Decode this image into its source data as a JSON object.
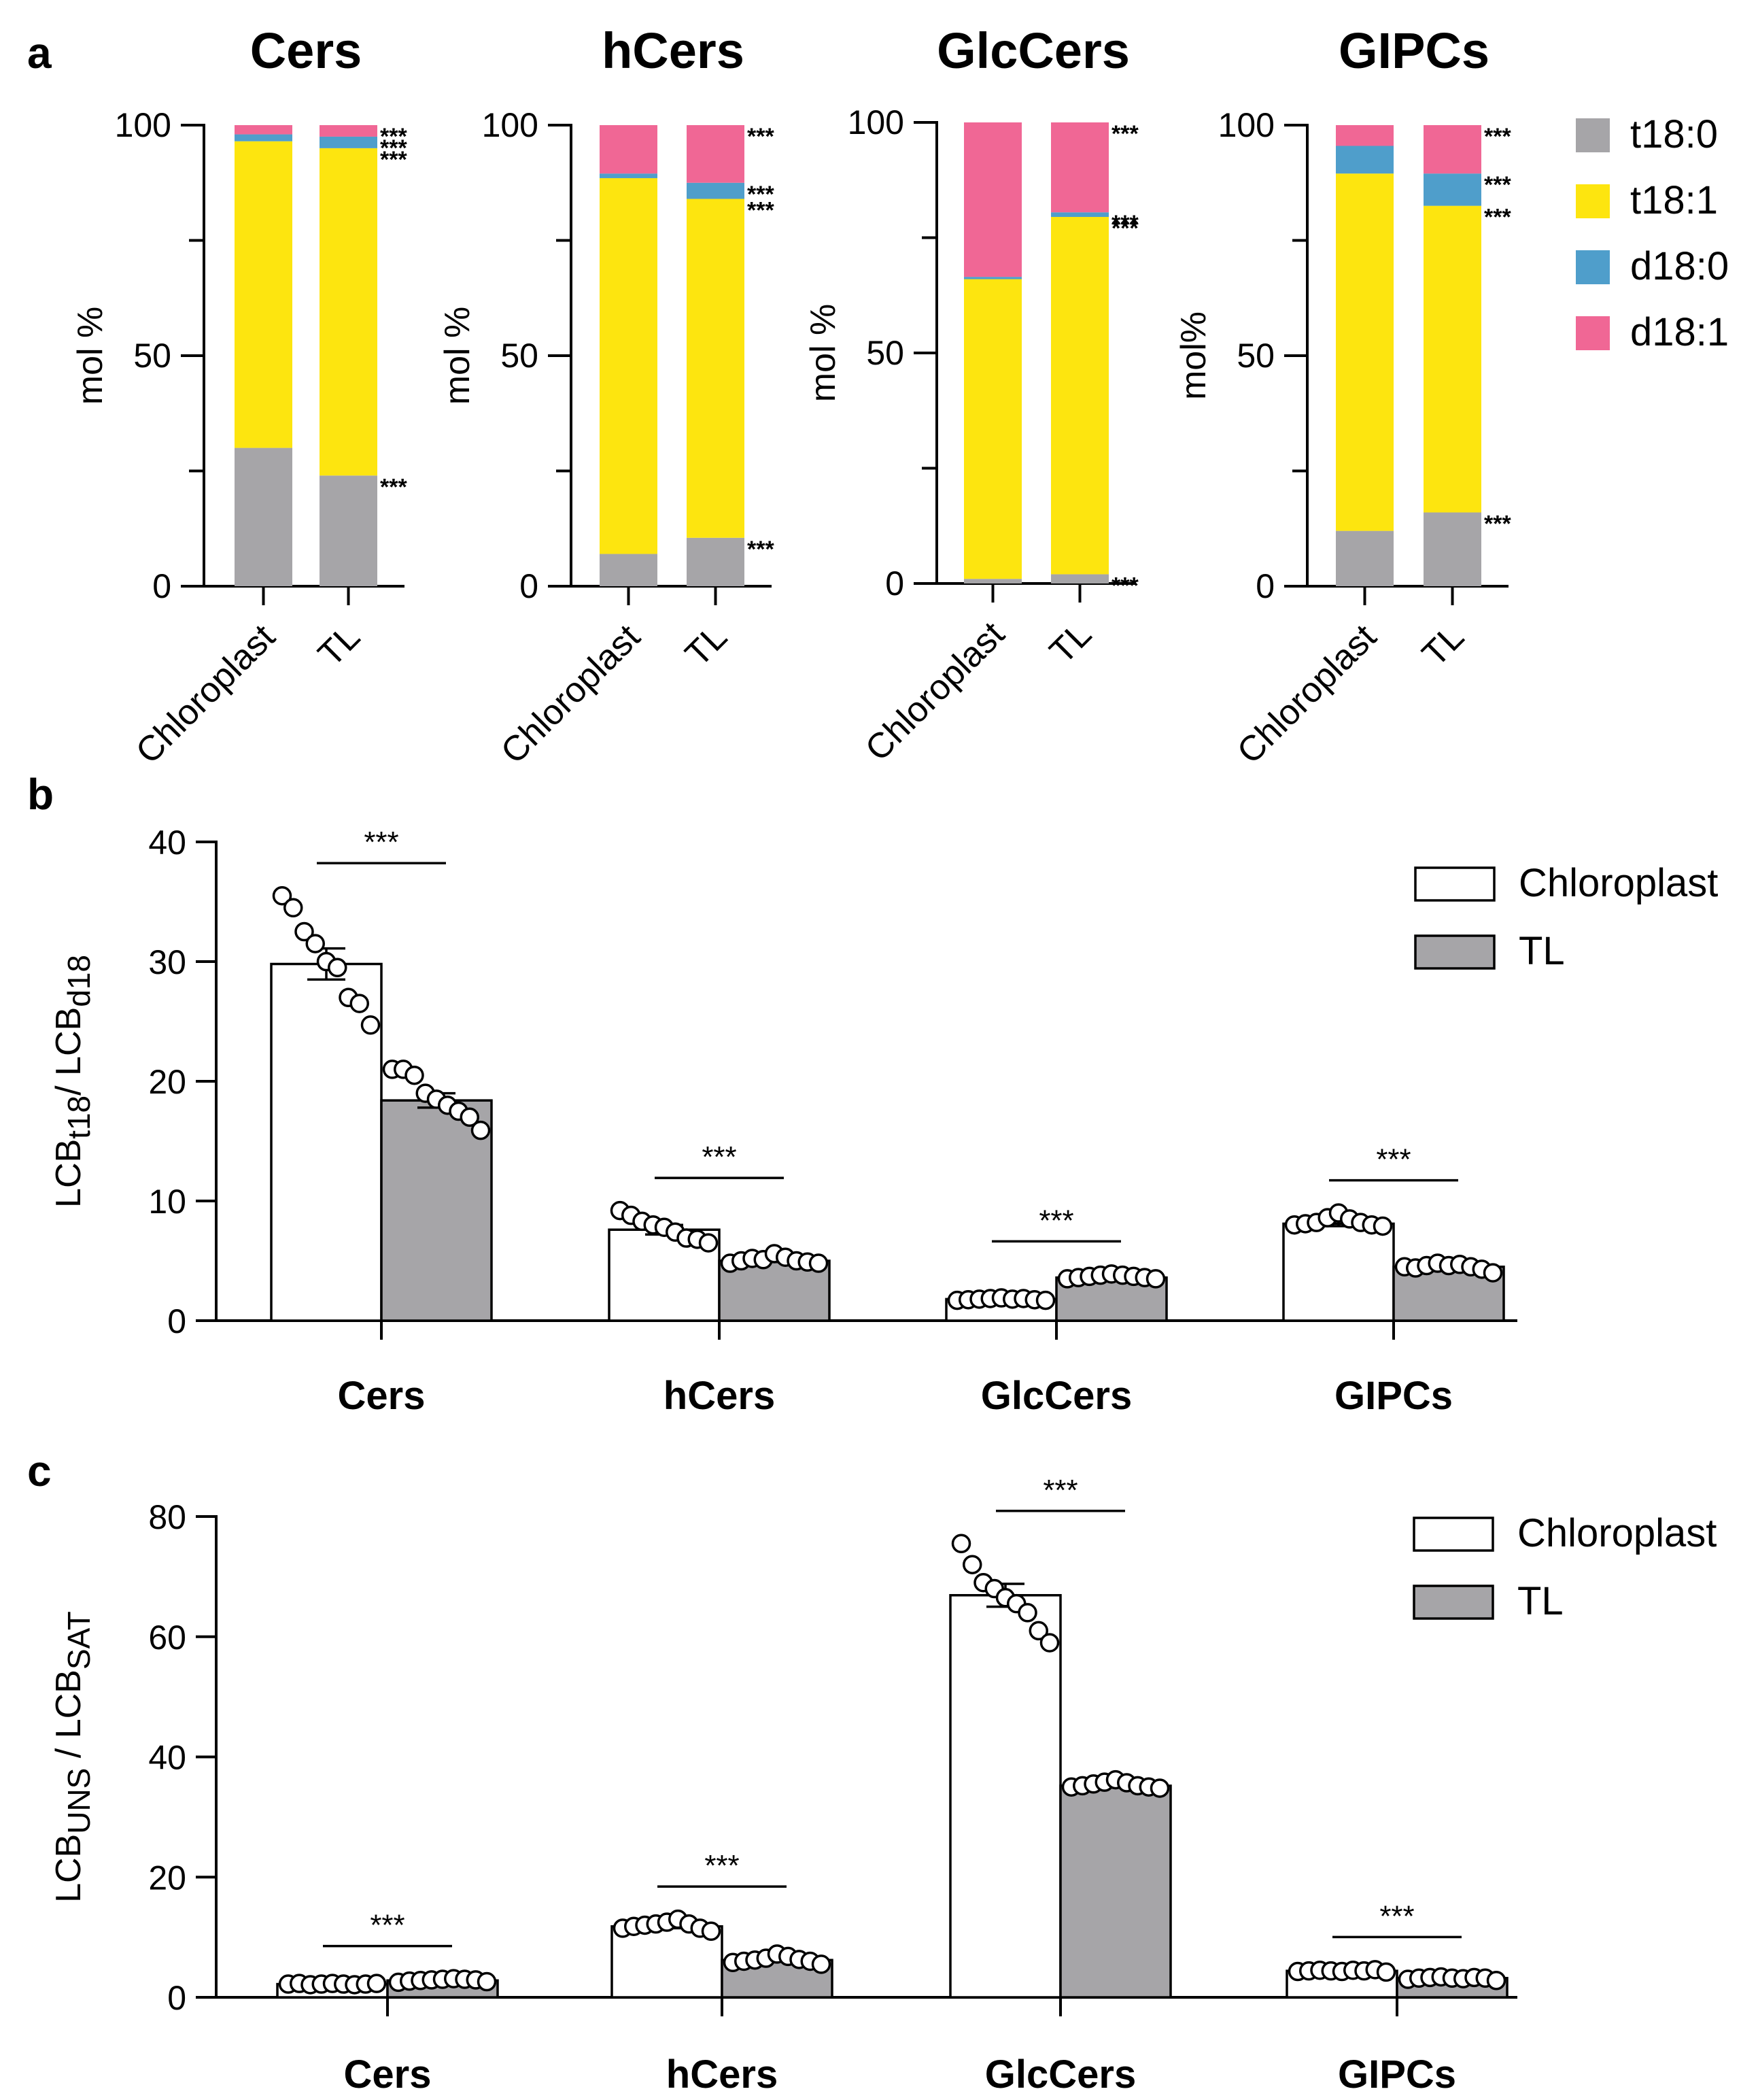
{
  "panel_labels": {
    "a": "a",
    "b": "b",
    "c": "c"
  },
  "colors": {
    "t18_0": "#a6a5a8",
    "t18_1": "#fde50f",
    "d18_0": "#4f9ecb",
    "d18_1": "#f06795",
    "tl_bar": "#a6a5a8",
    "chloroplast_bar": "#ffffff"
  },
  "chart_data": [
    {
      "id": "a",
      "type": "bar",
      "stacked": true,
      "legend": {
        "position": "right",
        "entries": [
          {
            "label": "t18:0",
            "key": "t18_0"
          },
          {
            "label": "t18:1",
            "key": "t18_1"
          },
          {
            "label": "d18:0",
            "key": "d18_0"
          },
          {
            "label": "d18:1",
            "key": "d18_1"
          }
        ]
      },
      "categories": [
        "Chloroplast",
        "TL"
      ],
      "ylim": [
        0,
        100
      ],
      "yticks": [
        "0",
        "50",
        "100"
      ],
      "significance": "***",
      "subplots": [
        {
          "title": "Cers",
          "ylabel": "mol %",
          "series": {
            "t18_0": [
              30,
              24
            ],
            "t18_1": [
              66.5,
              71
            ],
            "d18_0": [
              1.5,
              2.5
            ],
            "d18_1": [
              2,
              2.5
            ]
          },
          "stars": [
            "t18_1",
            "d18_0",
            "d18_1",
            "t18_0"
          ]
        },
        {
          "title": "hCers",
          "ylabel": "mol %",
          "series": {
            "t18_0": [
              7,
              10.5
            ],
            "t18_1": [
              81.5,
              73.5
            ],
            "d18_0": [
              1,
              3.5
            ],
            "d18_1": [
              10.5,
              12.5
            ]
          },
          "stars": [
            "d18_1",
            "d18_0",
            "t18_1",
            "t18_0"
          ]
        },
        {
          "title": "GlcCers",
          "ylabel": "mol %",
          "series": {
            "t18_0": [
              1,
              2
            ],
            "t18_1": [
              65,
              77.5
            ],
            "d18_0": [
              0.5,
              1
            ],
            "d18_1": [
              33.5,
              19.5
            ]
          },
          "stars": [
            "d18_1",
            "d18_0",
            "t18_1",
            "t18_0"
          ]
        },
        {
          "title": "GIPCs",
          "ylabel": "mol%",
          "series": {
            "t18_0": [
              12,
              16
            ],
            "t18_1": [
              77.5,
              66.5
            ],
            "d18_0": [
              6,
              7
            ],
            "d18_1": [
              4.5,
              10.5
            ]
          },
          "stars": [
            "d18_1",
            "d18_0",
            "t18_1",
            "t18_0"
          ]
        }
      ]
    },
    {
      "id": "b",
      "type": "bar",
      "ylabel": {
        "main": "LCB",
        "sub1": "t18",
        "mid": "/ LCB",
        "sub2": "d18"
      },
      "ylim": [
        0,
        40
      ],
      "yticks": [
        "0",
        "10",
        "20",
        "30",
        "40"
      ],
      "categories": [
        "Cers",
        "hCers",
        "GlcCers",
        "GIPCs"
      ],
      "legend": {
        "position": "top-right",
        "entries": [
          "Chloroplast",
          "TL"
        ]
      },
      "significance": "***",
      "series": [
        {
          "name": "Chloroplast",
          "values": [
            29.8,
            7.6,
            1.8,
            8.1
          ],
          "sem": [
            1.3,
            0.4,
            0.1,
            0.2
          ],
          "points": [
            [
              35.5,
              34.5,
              32.5,
              31.5,
              30,
              29.5,
              27,
              26.5,
              24.7
            ],
            [
              9.2,
              8.8,
              8.3,
              8,
              7.8,
              7.4,
              6.9,
              6.8,
              6.5
            ],
            [
              1.7,
              1.75,
              1.8,
              1.85,
              1.9,
              1.8,
              1.85,
              1.75,
              1.7
            ],
            [
              8,
              8.1,
              8.2,
              8.6,
              9,
              8.5,
              8.2,
              8,
              7.9
            ]
          ]
        },
        {
          "name": "TL",
          "values": [
            18.4,
            5.0,
            3.6,
            4.5
          ],
          "sem": [
            0.6,
            0.1,
            0.1,
            0.1
          ],
          "points": [
            [
              21,
              21,
              20.5,
              19,
              18.5,
              18,
              17.5,
              17,
              15.9
            ],
            [
              4.8,
              5,
              5.2,
              5.1,
              5.6,
              5.3,
              5,
              4.9,
              4.8
            ],
            [
              3.5,
              3.6,
              3.7,
              3.8,
              3.9,
              3.8,
              3.7,
              3.6,
              3.5
            ],
            [
              4.5,
              4.4,
              4.6,
              4.8,
              4.6,
              4.7,
              4.5,
              4.3,
              4
            ]
          ]
        }
      ]
    },
    {
      "id": "c",
      "type": "bar",
      "ylabel": {
        "main": "LCB",
        "sub1": "UNS",
        "mid": " / LCB",
        "sub2": "SAT"
      },
      "ylim": [
        0,
        80
      ],
      "yticks": [
        "0",
        "20",
        "40",
        "60",
        "80"
      ],
      "categories": [
        "Cers",
        "hCers",
        "GlcCers",
        "GIPCs"
      ],
      "legend": {
        "position": "top-right",
        "entries": [
          "Chloroplast",
          "TL"
        ]
      },
      "significance": "***",
      "series": [
        {
          "name": "Chloroplast",
          "values": [
            2.2,
            11.8,
            66.9,
            4.4
          ],
          "sem": [
            0.1,
            0.3,
            1.9,
            0.1
          ],
          "points": [
            [
              2.2,
              2.3,
              2.1,
              2.2,
              2.3,
              2.2,
              2.1,
              2.2,
              2.3
            ],
            [
              11.5,
              11.8,
              12,
              12.2,
              12.5,
              13,
              12.2,
              11.5,
              11
            ],
            [
              75.5,
              72,
              69,
              68,
              66.5,
              65.5,
              64,
              61,
              59
            ],
            [
              4.3,
              4.4,
              4.5,
              4.4,
              4.3,
              4.5,
              4.4,
              4.6,
              4.2
            ]
          ]
        },
        {
          "name": "TL",
          "values": [
            2.8,
            6.2,
            35.2,
            3.2
          ],
          "sem": [
            0.1,
            0.2,
            0.2,
            0.1
          ],
          "points": [
            [
              2.5,
              2.7,
              2.8,
              2.9,
              3,
              3.1,
              3,
              2.9,
              2.6
            ],
            [
              5.8,
              6,
              6.2,
              6.5,
              7.2,
              6.8,
              6.3,
              6,
              5.5
            ],
            [
              35,
              35.2,
              35.5,
              35.8,
              36.2,
              35.7,
              35.2,
              35,
              34.8
            ],
            [
              3,
              3.2,
              3.3,
              3.4,
              3.2,
              3.1,
              3.3,
              3.2,
              2.8
            ]
          ]
        }
      ]
    }
  ]
}
